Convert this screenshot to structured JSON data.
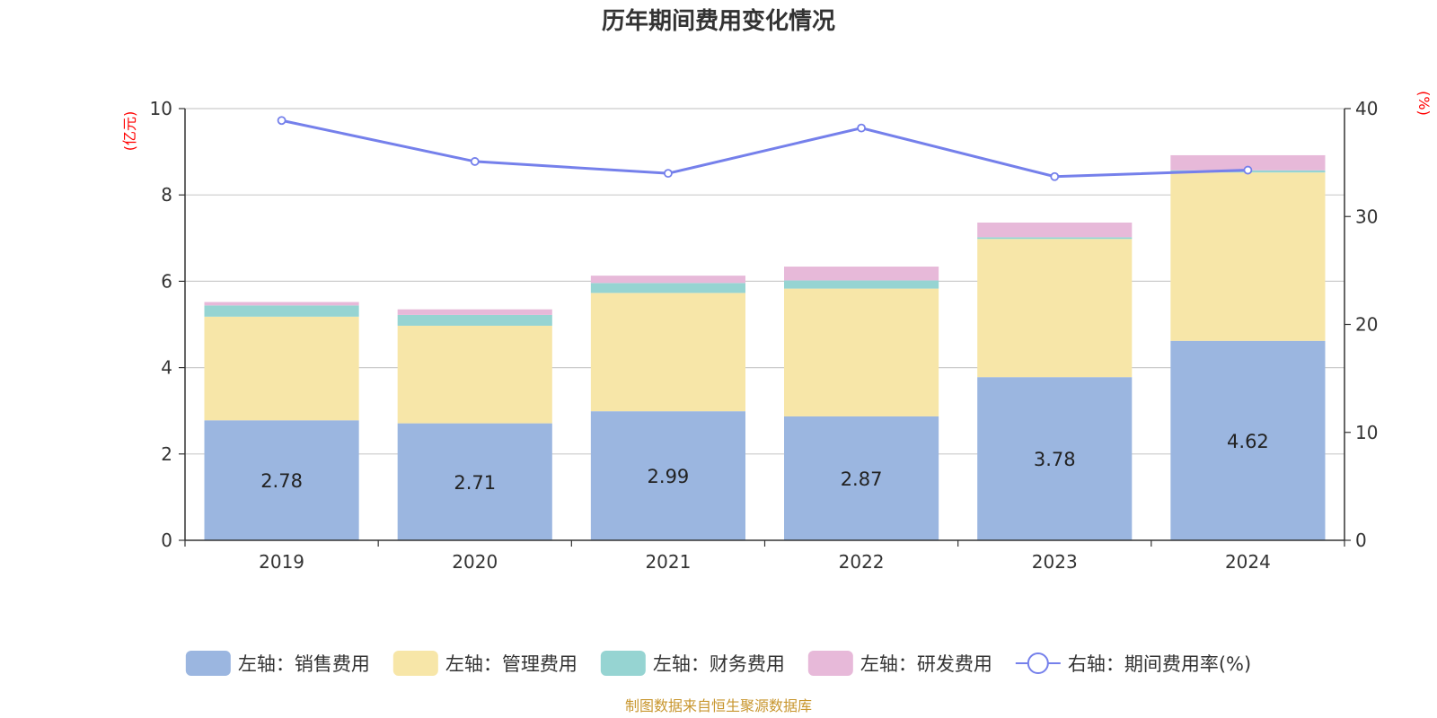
{
  "chart_data": {
    "type": "bar",
    "title": "历年期间费用变化情况",
    "categories": [
      "2019",
      "2020",
      "2021",
      "2022",
      "2023",
      "2024"
    ],
    "left_axis": {
      "unit": "(亿元)",
      "ylim": [
        0,
        10
      ],
      "ticks": [
        0,
        2,
        4,
        6,
        8,
        10
      ]
    },
    "right_axis": {
      "unit": "(%)",
      "ylim": [
        0,
        40
      ],
      "ticks": [
        0,
        10,
        20,
        30,
        40
      ]
    },
    "series": [
      {
        "name": "左轴：销售费用",
        "type": "bar",
        "axis": "left",
        "color": "#9bb6e0",
        "values": [
          2.78,
          2.71,
          2.99,
          2.87,
          3.78,
          4.62
        ],
        "show_labels": true
      },
      {
        "name": "左轴：管理费用",
        "type": "bar",
        "axis": "left",
        "color": "#f7e6a8",
        "values": [
          2.4,
          2.26,
          2.74,
          2.96,
          3.2,
          3.9
        ]
      },
      {
        "name": "左轴：财务费用",
        "type": "bar",
        "axis": "left",
        "color": "#96d4d2",
        "values": [
          0.26,
          0.25,
          0.23,
          0.19,
          0.04,
          0.05
        ]
      },
      {
        "name": "左轴：研发费用",
        "type": "bar",
        "axis": "left",
        "color": "#e7b9d9",
        "values": [
          0.08,
          0.13,
          0.17,
          0.32,
          0.34,
          0.35
        ]
      },
      {
        "name": "右轴：期间费用率(%)",
        "type": "line",
        "axis": "right",
        "color": "#7580eb",
        "values": [
          38.9,
          35.1,
          34.0,
          38.2,
          33.7,
          34.3
        ]
      }
    ],
    "grid": true,
    "legend_position": "bottom"
  },
  "source_text": "制图数据来自恒生聚源数据库"
}
